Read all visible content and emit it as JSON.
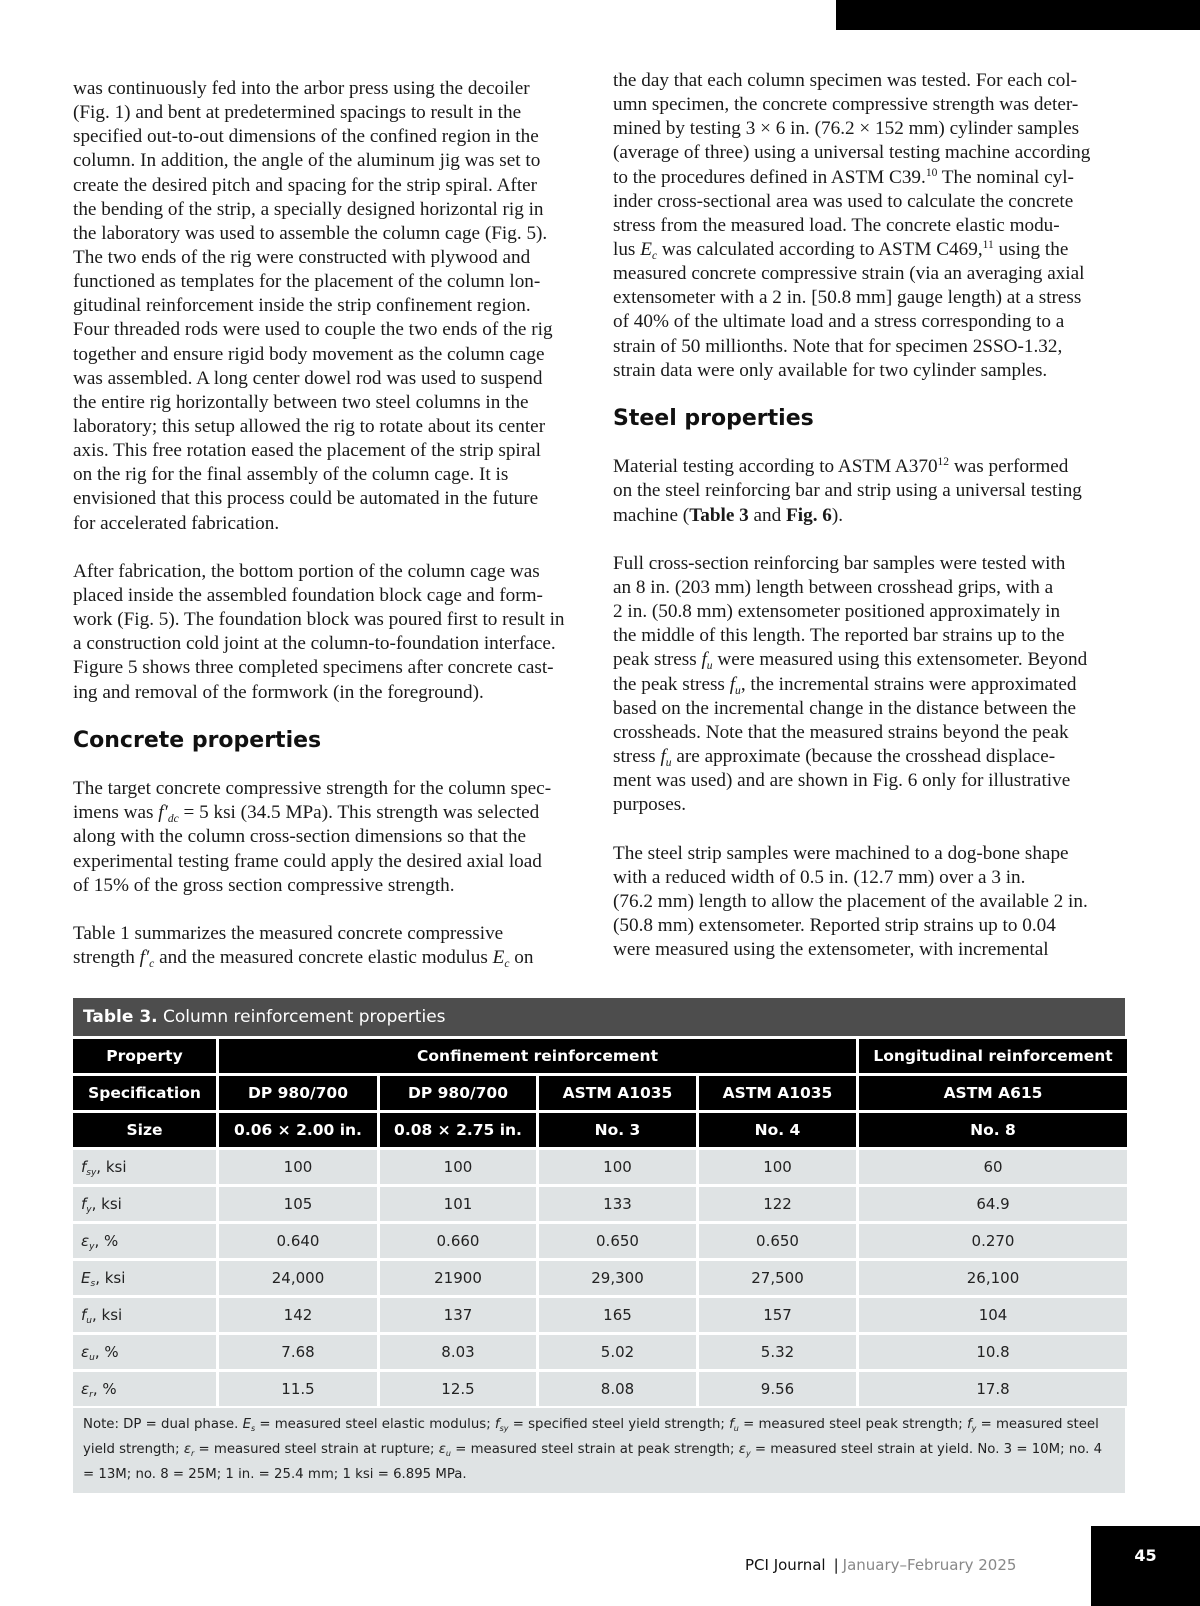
{
  "left_column": [
    {
      "type": "para",
      "lines": [
        "was continuously fed into the arbor press using the decoiler",
        "(Fig. 1) and bent at predetermined spacings to result in the",
        "specified out-to-out dimensions of the confined region in the",
        "column. In addition, the angle of the aluminum jig was set to",
        "create the desired pitch and spacing for the strip spiral. After",
        "the bending of the strip, a specially designed horizontal rig in",
        "the laboratory was used to assemble the column cage (Fig. 5).",
        "The two ends of the rig were constructed with plywood and",
        "functioned as templates for the placement of the column lon-",
        "gitudinal reinforcement inside the strip confinement region.",
        "Four threaded rods were used to couple the two ends of the rig",
        "together and ensure rigid body movement as the column cage",
        "was assembled. A long center dowel rod was used to suspend",
        "the entire rig horizontally between two steel columns in the",
        "laboratory; this setup allowed the rig to rotate about its center",
        "axis. This free rotation eased the placement of the strip spiral",
        "on the rig for the final assembly of the column cage. It is",
        "envisioned that this process could be automated in the future",
        "for accelerated fabrication."
      ]
    },
    {
      "type": "para",
      "lines": [
        "After fabrication, the bottom portion of the column cage was",
        "placed inside the assembled foundation block cage and form-",
        "work (Fig. 5). The foundation block was poured first to result in",
        "a construction cold joint at the column-to-foundation interface.",
        "Figure 5 shows three completed specimens after concrete cast-",
        "ing and removal of the formwork (in the foreground)."
      ]
    },
    {
      "type": "heading",
      "text": "Concrete properties"
    },
    {
      "type": "para",
      "lines": [
        "The target concrete compressive strength for the column spec-",
        [
          "imens was ",
          {
            "i": "f′",
            "sub": "dc"
          },
          " = 5 ksi (34.5 MPa). This strength was selected"
        ],
        "along with the column cross-section dimensions so that the",
        "experimental testing frame could apply the desired axial load",
        "of 15% of the gross section compressive strength."
      ]
    },
    {
      "type": "para",
      "lines": [
        "Table 1 summarizes the measured concrete compressive",
        [
          "strength ",
          {
            "i": "f′",
            "sub": "c"
          },
          " and the measured concrete elastic modulus ",
          {
            "i": "E",
            "sub": "c"
          },
          " on"
        ]
      ]
    }
  ],
  "right_column": [
    {
      "type": "para",
      "lines": [
        "the day that each column specimen was tested. For each col-",
        "umn specimen, the concrete compressive strength  was deter-",
        "mined by testing 3 × 6 in. (76.2 × 152 mm) cylinder samples",
        "(average of three) using a universal testing machine according",
        [
          "to the procedures defined in ASTM C39.",
          {
            "sup": "10"
          },
          " The nominal cyl-"
        ],
        "inder cross-sectional area was used to calculate the concrete",
        "stress from the measured load. The concrete elastic modu-",
        [
          "lus ",
          {
            "i": "E",
            "sub": "c"
          },
          " was calculated according to ASTM C469,",
          {
            "sup": "11"
          },
          " using the"
        ],
        "measured concrete compressive strain (via an averaging axial",
        "extensometer with a 2 in. [50.8 mm] gauge length) at a stress",
        "of 40% of the ultimate load and a stress corresponding to a",
        "strain of 50 millionths. Note that for specimen 2SSO-1.32,",
        "strain data were only available for two cylinder samples."
      ]
    },
    {
      "type": "heading",
      "text": "Steel properties"
    },
    {
      "type": "para",
      "lines": [
        [
          "Material testing according to ASTM A370",
          {
            "sup": "12"
          },
          " was performed"
        ],
        "on the steel reinforcing bar and strip using a universal testing",
        [
          "machine (",
          {
            "b": "Table 3"
          },
          " and ",
          {
            "b": "Fig. 6"
          },
          ")."
        ]
      ]
    },
    {
      "type": "para",
      "lines": [
        "Full cross-section reinforcing bar samples were tested with",
        "an 8 in. (203 mm) length between crosshead grips, with a",
        "2 in. (50.8 mm) extensometer positioned approximately in",
        "the middle of this length. The reported bar strains up to the",
        [
          "peak stress ",
          {
            "i": "f",
            "sub": "u"
          },
          " were measured using this extensometer. Beyond"
        ],
        [
          "the peak stress ",
          {
            "i": "f",
            "sub": "u"
          },
          ", the incremental strains were approximated"
        ],
        "based on the incremental change in the distance between the",
        "crossheads. Note that the measured strains beyond the peak",
        [
          "stress ",
          {
            "i": "f",
            "sub": "u"
          },
          " are approximate (because the crosshead displace-"
        ],
        "ment was used) and are shown in Fig. 6 only for illustrative",
        "purposes."
      ]
    },
    {
      "type": "para",
      "lines": [
        "The steel strip samples were machined to a dog-bone shape",
        "with a reduced width of 0.5 in. (12.7 mm) over a 3 in.",
        "(76.2 mm) length to allow the placement of the available 2 in.",
        "(50.8 mm) extensometer. Reported strip strains up to 0.04",
        "were measured using the extensometer, with incremental"
      ]
    }
  ],
  "table": {
    "label": "Table 3.",
    "title": "Column reinforcement properties",
    "header_row1": {
      "property": "Property",
      "confinement": "Confinement reinforcement",
      "longitudinal": "Longitudinal reinforcement"
    },
    "specification": {
      "label": "Specification",
      "values": [
        "DP 980/700",
        "DP 980/700",
        "ASTM A1035",
        "ASTM A1035",
        "ASTM A615"
      ]
    },
    "size": {
      "label": "Size",
      "values": [
        "0.06 × 2.00 in.",
        "0.08 × 2.75 in.",
        "No. 3",
        "No. 4",
        "No. 8"
      ]
    },
    "rows": [
      {
        "sym": "f",
        "sub": "sy",
        "unit": ", ksi",
        "values": [
          "100",
          "100",
          "100",
          "100",
          "60"
        ]
      },
      {
        "sym": "f",
        "sub": "y",
        "unit": ", ksi",
        "values": [
          "105",
          "101",
          "133",
          "122",
          "64.9"
        ]
      },
      {
        "sym": "ε",
        "sub": "y",
        "unit": ", %",
        "values": [
          "0.640",
          "0.660",
          "0.650",
          "0.650",
          "0.270"
        ]
      },
      {
        "sym": "E",
        "sub": "s",
        "unit": ", ksi",
        "values": [
          "24,000",
          "21900",
          "29,300",
          "27,500",
          "26,100"
        ]
      },
      {
        "sym": "f",
        "sub": "u",
        "unit": ", ksi",
        "values": [
          "142",
          "137",
          "165",
          "157",
          "104"
        ]
      },
      {
        "sym": "ε",
        "sub": "u",
        "unit": ", %",
        "values": [
          "7.68",
          "8.03",
          "5.02",
          "5.32",
          "10.8"
        ]
      },
      {
        "sym": "ε",
        "sub": "r",
        "unit": ", %",
        "values": [
          "11.5",
          "12.5",
          "8.08",
          "9.56",
          "17.8"
        ]
      }
    ],
    "note": [
      "Note: DP = dual phase. ",
      {
        "i": "E",
        "sub": "s"
      },
      " = measured steel elastic modulus; ",
      {
        "i": "f",
        "sub": "sy"
      },
      " = specified steel yield strength; ",
      {
        "i": "f",
        "sub": "u"
      },
      " = measured steel peak strength; ",
      {
        "i": "f",
        "sub": "y"
      },
      " = measured steel yield strength; ",
      {
        "i": "ε",
        "sub": "r"
      },
      " = measured steel strain at rupture; ",
      {
        "i": "ε",
        "sub": "u"
      },
      " = measured steel strain at peak strength; ",
      {
        "i": "ε",
        "sub": "y"
      },
      " = measured steel strain at yield. No. 3 = 10M; no. 4 = 13M; no. 8 = 25M; 1 in. = 25.4 mm; 1 ksi = 6.895 MPa."
    ]
  },
  "footer": {
    "journal": "PCI Journal",
    "separator": "|",
    "date": "January–February 2025",
    "page_number": "45"
  },
  "colors": {
    "table_title_bg": "#4d4d4d",
    "table_header_bg": "#000000",
    "table_cell_bg": "#dfe3e4"
  }
}
